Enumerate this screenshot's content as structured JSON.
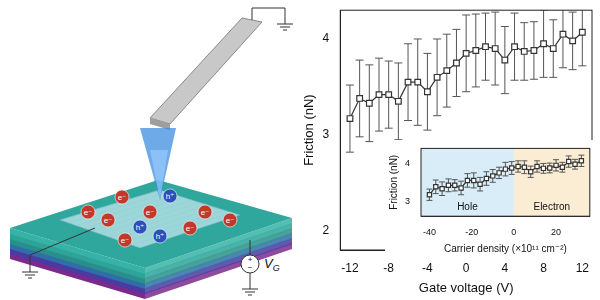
{
  "chart_data": [
    {
      "type": "line",
      "xlabel": "Gate voltage (V)",
      "ylabel": "Friction (nN)",
      "x": [
        -12,
        -11,
        -10,
        -9,
        -8,
        -7,
        -6,
        -5,
        -4,
        -3,
        -2,
        -1,
        0,
        1,
        2,
        3,
        4,
        5,
        6,
        7,
        8,
        9,
        10,
        11,
        12
      ],
      "values": [
        3.17,
        3.38,
        3.33,
        3.42,
        3.42,
        3.35,
        3.55,
        3.55,
        3.45,
        3.6,
        3.67,
        3.75,
        3.85,
        3.88,
        3.92,
        3.9,
        3.78,
        3.92,
        3.87,
        3.88,
        3.95,
        3.9,
        4.05,
        3.98,
        4.07
      ],
      "errors": [
        0.35,
        0.4,
        0.4,
        0.38,
        0.35,
        0.4,
        0.4,
        0.45,
        0.4,
        0.4,
        0.38,
        0.35,
        0.4,
        0.38,
        0.35,
        0.38,
        0.35,
        0.35,
        0.3,
        0.3,
        0.35,
        0.3,
        0.35,
        0.3,
        0.35
      ],
      "color": "#333333",
      "marker": "square",
      "grid": false,
      "xlim": [
        -13,
        13
      ],
      "xticks": [
        -12,
        -8,
        -4,
        0,
        4,
        8,
        12
      ],
      "ylim": [
        1.8,
        4.3
      ],
      "yticks": [
        2,
        3,
        4
      ]
    },
    {
      "type": "line",
      "xlabel": "Carrier density (×10¹¹ cm⁻²)",
      "ylabel": "Friction (nN)",
      "x": [
        -40,
        -37,
        -34,
        -31,
        -28,
        -25,
        -22,
        -19,
        -16,
        -13,
        -10,
        -7,
        -4,
        -1,
        2,
        5,
        8,
        11,
        14,
        17,
        20,
        23,
        26,
        29,
        32
      ],
      "values": [
        3.17,
        3.38,
        3.33,
        3.42,
        3.42,
        3.35,
        3.55,
        3.55,
        3.45,
        3.6,
        3.67,
        3.75,
        3.85,
        3.88,
        3.92,
        3.9,
        3.78,
        3.92,
        3.87,
        3.88,
        3.95,
        3.9,
        4.05,
        3.98,
        4.07
      ],
      "errors": [
        0.15,
        0.18,
        0.18,
        0.17,
        0.15,
        0.18,
        0.18,
        0.2,
        0.18,
        0.18,
        0.17,
        0.15,
        0.18,
        0.17,
        0.15,
        0.17,
        0.15,
        0.15,
        0.13,
        0.13,
        0.15,
        0.13,
        0.15,
        0.13,
        0.15
      ],
      "color": "#333333",
      "marker": "square",
      "grid": false,
      "xlim": [
        -44,
        36
      ],
      "xticks": [
        -40,
        -20,
        0,
        20
      ],
      "ylim": [
        2.6,
        4.4
      ],
      "yticks": [
        3,
        4
      ],
      "regions": [
        {
          "label": "Hole",
          "from": -44,
          "to": 0,
          "color": "#d8edf8"
        },
        {
          "label": "Electron",
          "from": 0,
          "to": 36,
          "color": "#fbedd3"
        }
      ]
    }
  ],
  "illustration": {
    "charges": [
      {
        "label": "e⁻",
        "color": "#c0392b"
      },
      {
        "label": "e⁻",
        "color": "#c0392b"
      },
      {
        "label": "h⁺",
        "color": "#2c4fb8"
      },
      {
        "label": "e⁻",
        "color": "#c0392b"
      },
      {
        "label": "h⁺",
        "color": "#2c4fb8"
      },
      {
        "label": "e⁻",
        "color": "#c0392b"
      },
      {
        "label": "e⁻",
        "color": "#c0392b"
      },
      {
        "label": "h⁺",
        "color": "#2c4fb8"
      },
      {
        "label": "e⁻",
        "color": "#c0392b"
      },
      {
        "label": "e⁻",
        "color": "#c0392b"
      },
      {
        "label": "e⁻",
        "color": "#c0392b"
      }
    ],
    "gate_label": {
      "text": "V",
      "subscript": "G"
    },
    "gate_signs": [
      "+",
      "−"
    ]
  }
}
